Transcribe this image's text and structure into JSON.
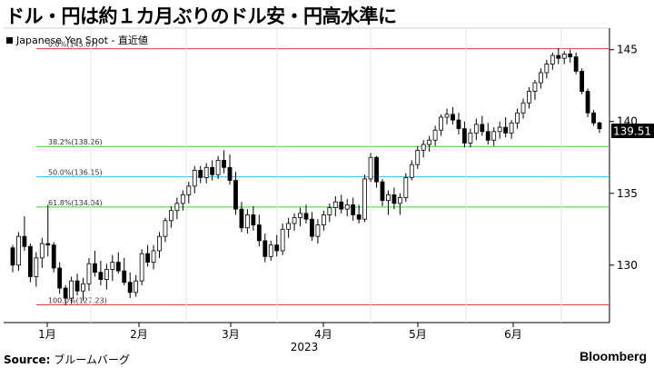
{
  "headline": "ドル・円は約１カ月ぶりのドル安・円高水準に",
  "footer": {
    "source_label": "Source:",
    "source_value": "ブルームバーグ",
    "brand": "Bloomberg"
  },
  "colors": {
    "fib_red": "#d04040",
    "fib_green": "#3bd13b",
    "fib_blue": "#39b7e8",
    "candle": "#000000"
  },
  "chart_data": {
    "type": "candlestick",
    "legend": "Japanese Yen Spot - 直近値",
    "legend_position": "top-left",
    "year_label": "2023",
    "x_ticks": [
      "1月",
      "2月",
      "3月",
      "4月",
      "5月",
      "6月"
    ],
    "y_ticks": [
      130,
      135,
      140,
      145
    ],
    "ylim": [
      126,
      146.5
    ],
    "last_value": "139.51",
    "fib_levels": [
      {
        "label": "0.0%(145.07)",
        "value": 145.07,
        "color": "red"
      },
      {
        "label": "38.2%(138.26)",
        "value": 138.26,
        "color": "green"
      },
      {
        "label": "50.0%(136.15)",
        "value": 136.15,
        "color": "blue"
      },
      {
        "label": "61.8%(134.04)",
        "value": 134.04,
        "color": "green"
      },
      {
        "label": "100.0%(127.23)",
        "value": 127.23,
        "color": "red"
      }
    ],
    "candles": [
      [
        131.2,
        131.4,
        129.5,
        130.0
      ],
      [
        130.0,
        132.3,
        129.6,
        132.0
      ],
      [
        132.0,
        133.4,
        131.0,
        131.3
      ],
      [
        131.3,
        131.5,
        128.8,
        129.2
      ],
      [
        129.2,
        130.9,
        128.5,
        130.5
      ],
      [
        130.5,
        131.9,
        129.8,
        131.5
      ],
      [
        131.5,
        134.2,
        130.6,
        131.4
      ],
      [
        131.4,
        131.6,
        129.5,
        129.8
      ],
      [
        129.8,
        130.2,
        128.0,
        128.4
      ],
      [
        128.4,
        128.6,
        127.2,
        127.7
      ],
      [
        127.7,
        129.2,
        127.3,
        128.9
      ],
      [
        128.9,
        129.4,
        127.9,
        128.2
      ],
      [
        128.2,
        129.1,
        127.5,
        128.7
      ],
      [
        128.7,
        130.5,
        128.2,
        130.1
      ],
      [
        130.1,
        131.0,
        129.2,
        129.5
      ],
      [
        129.5,
        130.3,
        128.6,
        129.0
      ],
      [
        129.0,
        130.1,
        128.3,
        129.7
      ],
      [
        129.7,
        130.7,
        128.9,
        130.2
      ],
      [
        130.2,
        130.9,
        129.4,
        129.6
      ],
      [
        129.6,
        130.5,
        128.6,
        128.8
      ],
      [
        128.8,
        129.5,
        127.7,
        128.1
      ],
      [
        128.1,
        129.3,
        127.8,
        128.9
      ],
      [
        128.9,
        131.1,
        128.6,
        130.8
      ],
      [
        130.8,
        131.4,
        129.9,
        130.2
      ],
      [
        130.2,
        131.4,
        129.7,
        131.0
      ],
      [
        131.0,
        132.3,
        130.5,
        132.0
      ],
      [
        132.0,
        133.3,
        131.6,
        133.1
      ],
      [
        133.1,
        134.1,
        132.6,
        133.8
      ],
      [
        133.8,
        134.7,
        133.2,
        134.3
      ],
      [
        134.3,
        135.2,
        133.8,
        134.9
      ],
      [
        134.9,
        135.8,
        134.3,
        135.5
      ],
      [
        135.5,
        136.9,
        135.0,
        136.6
      ],
      [
        136.6,
        136.9,
        135.7,
        136.1
      ],
      [
        136.1,
        137.1,
        135.7,
        136.8
      ],
      [
        136.8,
        137.3,
        135.9,
        136.3
      ],
      [
        136.3,
        137.6,
        136.0,
        137.3
      ],
      [
        137.3,
        138.0,
        136.4,
        136.8
      ],
      [
        136.8,
        137.7,
        135.6,
        135.9
      ],
      [
        135.9,
        136.5,
        133.5,
        133.9
      ],
      [
        133.9,
        134.4,
        132.3,
        132.6
      ],
      [
        132.6,
        133.9,
        132.2,
        133.5
      ],
      [
        133.5,
        134.1,
        132.4,
        132.8
      ],
      [
        132.8,
        133.5,
        131.3,
        131.7
      ],
      [
        131.7,
        132.2,
        130.2,
        130.6
      ],
      [
        130.6,
        131.7,
        130.3,
        131.4
      ],
      [
        131.4,
        132.1,
        130.6,
        131.0
      ],
      [
        131.0,
        132.9,
        130.7,
        132.5
      ],
      [
        132.5,
        133.3,
        131.9,
        132.9
      ],
      [
        132.9,
        133.6,
        132.4,
        133.3
      ],
      [
        133.3,
        134.0,
        132.7,
        133.6
      ],
      [
        133.6,
        134.2,
        132.9,
        133.2
      ],
      [
        133.2,
        133.7,
        131.7,
        132.0
      ],
      [
        132.0,
        133.2,
        131.5,
        132.8
      ],
      [
        132.8,
        133.8,
        132.4,
        133.5
      ],
      [
        133.5,
        134.3,
        133.0,
        134.0
      ],
      [
        134.0,
        134.8,
        133.4,
        134.4
      ],
      [
        134.4,
        134.9,
        133.6,
        133.9
      ],
      [
        133.9,
        134.6,
        133.4,
        134.2
      ],
      [
        134.2,
        134.7,
        133.1,
        133.5
      ],
      [
        133.5,
        134.2,
        132.9,
        133.2
      ],
      [
        133.2,
        136.3,
        133.0,
        136.0
      ],
      [
        136.0,
        137.8,
        135.8,
        137.5
      ],
      [
        137.5,
        137.6,
        135.4,
        135.8
      ],
      [
        135.8,
        136.0,
        134.1,
        134.5
      ],
      [
        134.5,
        135.2,
        133.5,
        134.9
      ],
      [
        134.9,
        135.4,
        133.9,
        134.3
      ],
      [
        134.3,
        135.0,
        133.5,
        134.7
      ],
      [
        134.7,
        136.4,
        134.4,
        136.1
      ],
      [
        136.1,
        137.3,
        135.9,
        137.0
      ],
      [
        137.0,
        138.3,
        136.7,
        138.0
      ],
      [
        138.0,
        138.7,
        137.5,
        138.4
      ],
      [
        138.4,
        139.0,
        137.9,
        138.7
      ],
      [
        138.7,
        139.7,
        138.3,
        139.4
      ],
      [
        139.4,
        140.5,
        139.0,
        140.3
      ],
      [
        140.3,
        140.9,
        139.8,
        140.5
      ],
      [
        140.5,
        141.0,
        139.8,
        140.1
      ],
      [
        140.1,
        140.6,
        139.1,
        139.5
      ],
      [
        139.5,
        140.0,
        138.2,
        138.5
      ],
      [
        138.5,
        139.5,
        138.2,
        139.2
      ],
      [
        139.2,
        140.2,
        138.7,
        139.8
      ],
      [
        139.8,
        140.4,
        139.0,
        139.3
      ],
      [
        139.3,
        139.9,
        138.4,
        138.7
      ],
      [
        138.7,
        139.6,
        138.3,
        139.3
      ],
      [
        139.3,
        140.0,
        138.8,
        139.6
      ],
      [
        139.6,
        140.3,
        138.9,
        139.2
      ],
      [
        139.2,
        140.1,
        138.8,
        139.9
      ],
      [
        139.9,
        140.9,
        139.5,
        140.6
      ],
      [
        140.6,
        141.6,
        140.2,
        141.3
      ],
      [
        141.3,
        142.4,
        140.9,
        142.1
      ],
      [
        142.1,
        142.9,
        141.5,
        142.7
      ],
      [
        142.7,
        143.7,
        142.3,
        143.4
      ],
      [
        143.4,
        144.3,
        143.0,
        144.0
      ],
      [
        144.0,
        144.8,
        143.6,
        144.6
      ],
      [
        144.6,
        145.1,
        144.0,
        144.4
      ],
      [
        144.4,
        144.9,
        144.0,
        144.7
      ],
      [
        144.7,
        145.0,
        144.1,
        144.5
      ],
      [
        144.5,
        144.8,
        143.3,
        143.5
      ],
      [
        143.5,
        143.7,
        141.9,
        142.1
      ],
      [
        142.1,
        142.3,
        140.3,
        140.6
      ],
      [
        140.6,
        140.8,
        139.7,
        139.9
      ],
      [
        139.9,
        140.0,
        139.2,
        139.5
      ]
    ]
  }
}
